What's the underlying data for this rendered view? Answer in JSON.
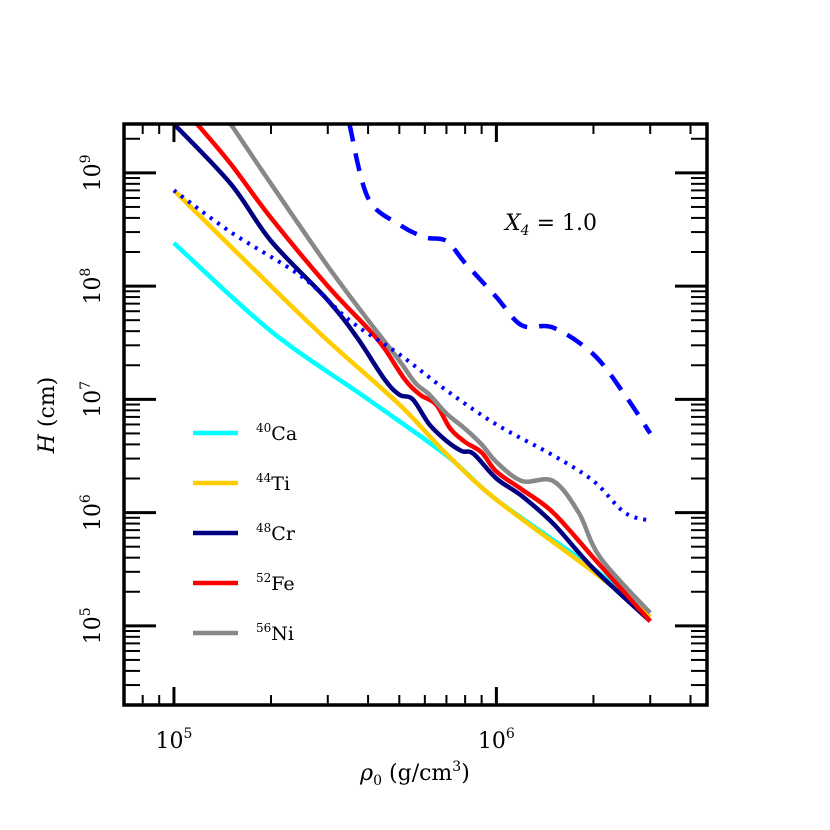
{
  "chart_data": {
    "type": "line",
    "title": "",
    "annotation": "X₄ = 1.0",
    "annotation_main": "X",
    "annotation_sub": "4",
    "annotation_rest": " = 1.0",
    "xlabel": "ρ₀ (g/cm³)",
    "xlabel_main": "ρ",
    "xlabel_sub": "0",
    "xlabel_unit": " (g/cm",
    "xlabel_sup": "3",
    "xlabel_close": ")",
    "ylabel": "H (cm)",
    "ylabel_main": "H",
    "ylabel_unit": " (cm)",
    "xscale": "log",
    "yscale": "log",
    "xlim": [
      70000,
      4500000
    ],
    "ylim": [
      20000,
      2700000000
    ],
    "xticks": [
      {
        "value": 100000,
        "base": "10",
        "exp": "5"
      },
      {
        "value": 1000000,
        "base": "10",
        "exp": "6"
      }
    ],
    "yticks": [
      {
        "value": 100000,
        "base": "10",
        "exp": "5"
      },
      {
        "value": 1000000,
        "base": "10",
        "exp": "6"
      },
      {
        "value": 10000000,
        "base": "10",
        "exp": "7"
      },
      {
        "value": 100000000,
        "base": "10",
        "exp": "8"
      },
      {
        "value": 1000000000,
        "base": "10",
        "exp": "9"
      }
    ],
    "grid": false,
    "legend_position": "lower-left",
    "series": [
      {
        "name": "Ca",
        "mass": "40",
        "color": "#00ffff",
        "style": "solid",
        "legend": true,
        "points": [
          [
            100000,
            240000000
          ],
          [
            200000,
            40000000
          ],
          [
            400000,
            10000000
          ],
          [
            700000,
            3200000
          ],
          [
            1000000,
            1300000
          ],
          [
            2000000,
            320000
          ],
          [
            3000000,
            120000
          ]
        ]
      },
      {
        "name": "Ti",
        "mass": "44",
        "color": "#ffcc00",
        "style": "solid",
        "legend": true,
        "points": [
          [
            100000,
            700000000
          ],
          [
            200000,
            100000000
          ],
          [
            300000,
            33000000
          ],
          [
            500000,
            9000000
          ],
          [
            700000,
            3300000
          ],
          [
            1000000,
            1300000
          ],
          [
            2000000,
            300000
          ],
          [
            3000000,
            120000
          ]
        ]
      },
      {
        "name": "Cr",
        "mass": "48",
        "color": "#000080",
        "style": "solid",
        "legend": true,
        "points": [
          [
            100000,
            2700000000
          ],
          [
            150000,
            800000000
          ],
          [
            200000,
            250000000
          ],
          [
            300000,
            75000000
          ],
          [
            370000,
            35000000
          ],
          [
            450000,
            15000000
          ],
          [
            500000,
            11000000
          ],
          [
            550000,
            10000000
          ],
          [
            620000,
            6000000
          ],
          [
            700000,
            4300000
          ],
          [
            780000,
            3500000
          ],
          [
            850000,
            3300000
          ],
          [
            1000000,
            2000000
          ],
          [
            1200000,
            1400000
          ],
          [
            1500000,
            800000
          ],
          [
            2000000,
            320000
          ],
          [
            3000000,
            110000
          ]
        ]
      },
      {
        "name": "Fe",
        "mass": "52",
        "color": "#ff0000",
        "style": "solid",
        "legend": true,
        "points": [
          [
            118000,
            2700000000
          ],
          [
            150000,
            1200000000
          ],
          [
            200000,
            400000000
          ],
          [
            300000,
            100000000
          ],
          [
            400000,
            42000000
          ],
          [
            450000,
            28000000
          ],
          [
            520000,
            15000000
          ],
          [
            580000,
            11000000
          ],
          [
            650000,
            9000000
          ],
          [
            720000,
            5500000
          ],
          [
            800000,
            4200000
          ],
          [
            900000,
            3400000
          ],
          [
            1000000,
            2300000
          ],
          [
            1200000,
            1600000
          ],
          [
            1500000,
            1000000
          ],
          [
            2000000,
            400000
          ],
          [
            3000000,
            110000
          ]
        ]
      },
      {
        "name": "Ni",
        "mass": "56",
        "color": "#888888",
        "style": "solid",
        "legend": true,
        "points": [
          [
            150000,
            2700000000
          ],
          [
            200000,
            800000000
          ],
          [
            300000,
            150000000
          ],
          [
            400000,
            50000000
          ],
          [
            500000,
            22000000
          ],
          [
            560000,
            14000000
          ],
          [
            620000,
            11000000
          ],
          [
            700000,
            7500000
          ],
          [
            800000,
            5500000
          ],
          [
            900000,
            4000000
          ],
          [
            1000000,
            2800000
          ],
          [
            1200000,
            1900000
          ],
          [
            1500000,
            1900000
          ],
          [
            1800000,
            1000000
          ],
          [
            2100000,
            400000
          ],
          [
            3000000,
            130000
          ]
        ]
      },
      {
        "name": "",
        "mass": "",
        "color": "#0000ff",
        "style": "dotted",
        "legend": false,
        "points": [
          [
            100000,
            700000000
          ],
          [
            150000,
            300000000
          ],
          [
            250000,
            120000000
          ],
          [
            350000,
            50000000
          ],
          [
            500000,
            25000000
          ],
          [
            700000,
            12000000
          ],
          [
            1000000,
            6000000
          ],
          [
            1500000,
            3200000
          ],
          [
            2000000,
            1900000
          ],
          [
            2500000,
            1000000
          ],
          [
            3000000,
            850000
          ]
        ]
      },
      {
        "name": "",
        "mass": "",
        "color": "#0000ff",
        "style": "dashed",
        "legend": false,
        "points": [
          [
            350000,
            2700000000
          ],
          [
            400000,
            600000000
          ],
          [
            500000,
            350000000
          ],
          [
            600000,
            270000000
          ],
          [
            700000,
            250000000
          ],
          [
            800000,
            160000000
          ],
          [
            1000000,
            80000000
          ],
          [
            1200000,
            45000000
          ],
          [
            1500000,
            43000000
          ],
          [
            2000000,
            25000000
          ],
          [
            2500000,
            11000000
          ],
          [
            3000000,
            5000000
          ]
        ]
      }
    ]
  }
}
